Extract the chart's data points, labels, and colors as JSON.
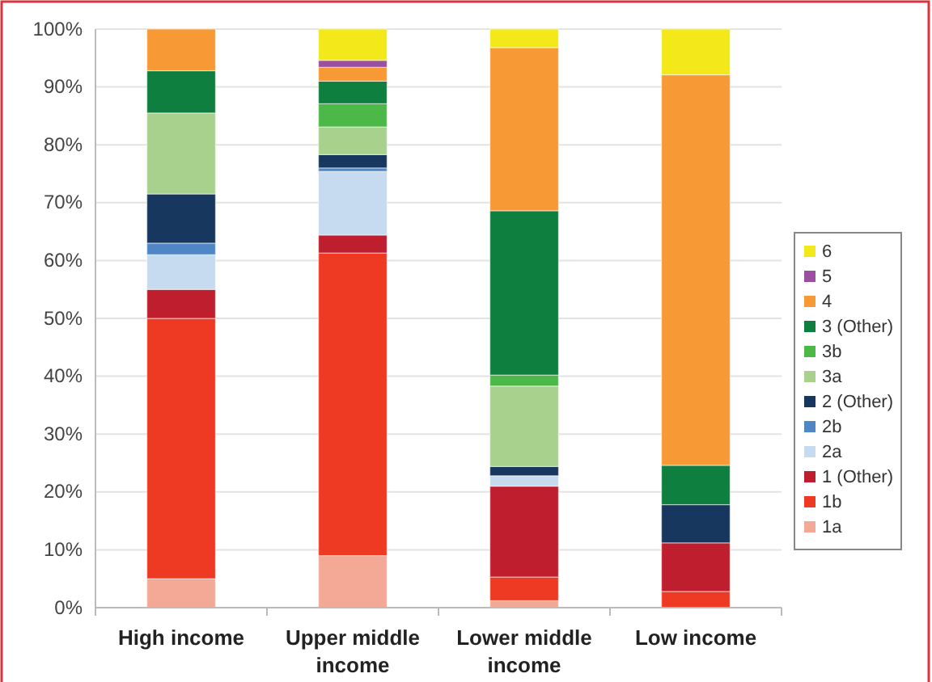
{
  "chart_data": {
    "type": "bar",
    "stacked": true,
    "categories": [
      "High income",
      "Upper middle income",
      "Lower middle income",
      "Low income"
    ],
    "series": [
      {
        "name": "1a",
        "color": "#f4a896",
        "values": [
          5,
          9,
          1.2,
          0
        ]
      },
      {
        "name": "1b",
        "color": "#ee3a23",
        "values": [
          45,
          52.3,
          4.1,
          2.8
        ]
      },
      {
        "name": "1 (Other)",
        "color": "#be1e2d",
        "values": [
          5,
          3.1,
          15.7,
          8.4
        ]
      },
      {
        "name": "2a",
        "color": "#c6dbef",
        "values": [
          6,
          11,
          1.8,
          0
        ]
      },
      {
        "name": "2b",
        "color": "#4f86c6",
        "values": [
          2,
          0.6,
          0,
          0
        ]
      },
      {
        "name": "2 (Other)",
        "color": "#17375e",
        "values": [
          8.5,
          2.3,
          1.6,
          6.6
        ]
      },
      {
        "name": "3a",
        "color": "#a9d18e",
        "values": [
          14,
          4.8,
          13.9,
          0
        ]
      },
      {
        "name": "3b",
        "color": "#4cb848",
        "values": [
          0,
          4,
          1.9,
          0
        ]
      },
      {
        "name": "3 (Other)",
        "color": "#0e7f3e",
        "values": [
          7.3,
          3.9,
          28.4,
          6.8
        ]
      },
      {
        "name": "4",
        "color": "#f79a35",
        "values": [
          7.2,
          2.4,
          28.2,
          67.5
        ]
      },
      {
        "name": "5",
        "color": "#9b4fa0",
        "values": [
          0,
          1.2,
          0,
          0
        ]
      },
      {
        "name": "6",
        "color": "#f2e81a",
        "values": [
          0,
          5.4,
          3.2,
          7.9
        ]
      }
    ],
    "ylim": [
      0,
      100
    ],
    "yticks": [
      {
        "value": 0,
        "label": "0%"
      },
      {
        "value": 10,
        "label": "10%"
      },
      {
        "value": 20,
        "label": "20%"
      },
      {
        "value": 30,
        "label": "30%"
      },
      {
        "value": 40,
        "label": "40%"
      },
      {
        "value": 50,
        "label": "50%"
      },
      {
        "value": 60,
        "label": "60%"
      },
      {
        "value": 70,
        "label": "70%"
      },
      {
        "value": 80,
        "label": "80%"
      },
      {
        "value": 90,
        "label": "90%"
      },
      {
        "value": 100,
        "label": "100%"
      }
    ],
    "grid": "y",
    "legend": "right"
  }
}
